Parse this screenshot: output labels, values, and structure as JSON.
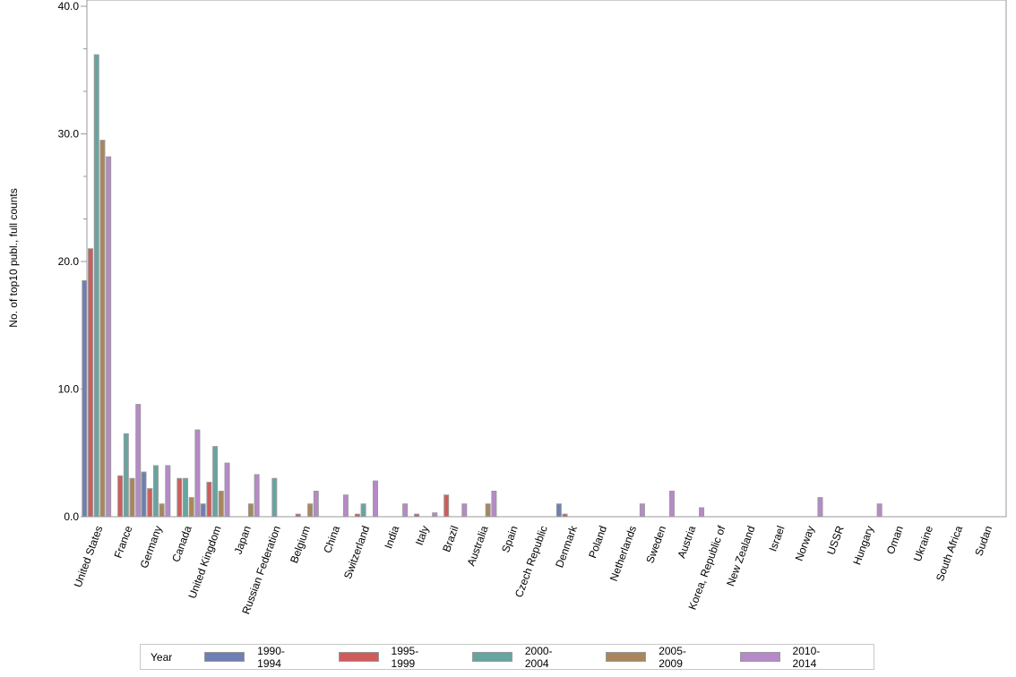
{
  "chart_data": {
    "type": "bar",
    "title": "",
    "xlabel": "",
    "ylabel": "No. of top10 publ., full counts",
    "ylim": [
      0,
      40
    ],
    "yticks": [
      "0.0",
      "10.0",
      "20.0",
      "30.0",
      "40.0"
    ],
    "grid": false,
    "legend_position": "bottom",
    "legend_title": "Year",
    "categories": [
      "United States",
      "France",
      "Germany",
      "Canada",
      "United Kingdom",
      "Japan",
      "Russian Federation",
      "Belgium",
      "China",
      "Switzerland",
      "India",
      "Italy",
      "Brazil",
      "Australia",
      "Spain",
      "Czech Republic",
      "Denmark",
      "Poland",
      "Netherlands",
      "Sweden",
      "Austria",
      "Korea, Republic of",
      "New Zealand",
      "Israel",
      "Norway",
      "USSR",
      "Hungary",
      "Oman",
      "Ukraine",
      "South Africa",
      "Sudan"
    ],
    "series": [
      {
        "name": "1990-1994",
        "color": "#6f7eb3",
        "values": [
          18.5,
          0,
          3.5,
          0,
          1.0,
          0,
          0,
          0,
          0,
          0,
          0,
          0,
          0,
          0,
          0,
          0,
          1.0,
          0,
          0,
          0,
          0,
          0,
          0,
          0,
          0,
          0,
          0,
          0,
          0,
          0,
          0
        ]
      },
      {
        "name": "1995-1999",
        "color": "#d05b5b",
        "values": [
          21.0,
          3.2,
          2.2,
          3.0,
          2.7,
          0,
          0,
          0.2,
          0,
          0.2,
          0,
          0.2,
          1.7,
          0,
          0,
          0,
          0.2,
          0,
          0,
          0,
          0,
          0,
          0,
          0,
          0,
          0,
          0,
          0,
          0,
          0,
          0
        ]
      },
      {
        "name": "2000-2004",
        "color": "#66a5a0",
        "values": [
          36.2,
          6.5,
          4.0,
          3.0,
          5.5,
          0,
          3.0,
          0,
          0,
          1.0,
          0,
          0,
          0,
          0,
          0,
          0,
          0,
          0,
          0,
          0,
          0,
          0,
          0,
          0,
          0,
          0,
          0,
          0,
          0,
          0,
          0
        ]
      },
      {
        "name": "2005-2009",
        "color": "#a9865b",
        "values": [
          29.5,
          3.0,
          1.0,
          1.5,
          2.0,
          1.0,
          0,
          1.0,
          0,
          0,
          0,
          0,
          0,
          1.0,
          0,
          0,
          0,
          0,
          0,
          0,
          0,
          0,
          0,
          0,
          0,
          0,
          0,
          0,
          0,
          0,
          0
        ]
      },
      {
        "name": "2010-2014",
        "color": "#b689c9",
        "values": [
          28.2,
          8.8,
          4.0,
          6.8,
          4.2,
          3.3,
          0,
          2.0,
          1.7,
          2.8,
          1.0,
          0.3,
          1.0,
          2.0,
          0,
          0,
          0,
          0,
          1.0,
          2.0,
          0.7,
          0,
          0,
          0,
          1.5,
          0,
          1.0,
          0,
          0,
          0,
          0
        ]
      }
    ]
  },
  "legend": {
    "title": "Year",
    "items": [
      {
        "label": "1990-1994",
        "color": "#6f7eb3"
      },
      {
        "label": "1995-1999",
        "color": "#d05b5b"
      },
      {
        "label": "2000-2004",
        "color": "#66a5a0"
      },
      {
        "label": "2005-2009",
        "color": "#a9865b"
      },
      {
        "label": "2010-2014",
        "color": "#b689c9"
      }
    ]
  }
}
